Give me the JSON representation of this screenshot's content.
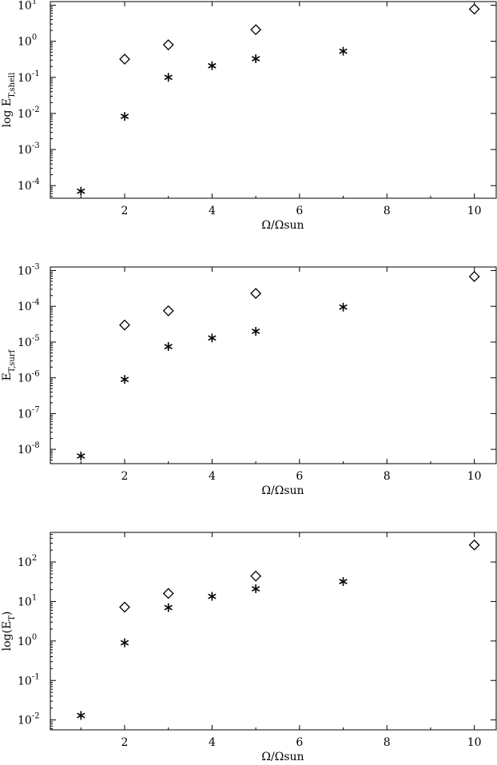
{
  "chart_data": [
    {
      "type": "scatter",
      "xlabel": "Ω/Ωsun",
      "ylabel_main": "log  E",
      "ylabel_sub": "T,shell",
      "xlim": [
        0.3,
        10.5
      ],
      "ylog_range": [
        -4.35,
        1.1
      ],
      "yscale": "log",
      "x_ticks": [
        2,
        4,
        6,
        8,
        10
      ],
      "y_ticks": [
        {
          "mant": "10",
          "exp": "1",
          "log": 1
        },
        {
          "mant": "10",
          "exp": "0",
          "log": 0
        },
        {
          "mant": "10",
          "exp": "-1",
          "log": -1
        },
        {
          "mant": "10",
          "exp": "-2",
          "log": -2
        },
        {
          "mant": "10",
          "exp": "-3",
          "log": -3
        },
        {
          "mant": "10",
          "exp": "-4",
          "log": -4
        }
      ],
      "series": [
        {
          "marker": "diamond",
          "points": [
            {
              "x": 2,
              "y": 0.32
            },
            {
              "x": 3,
              "y": 0.8
            },
            {
              "x": 5,
              "y": 2.1
            },
            {
              "x": 10,
              "y": 7.8
            }
          ]
        },
        {
          "marker": "asterisk",
          "points": [
            {
              "x": 1,
              "y": 7e-05
            },
            {
              "x": 2,
              "y": 0.0083
            },
            {
              "x": 3,
              "y": 0.1
            },
            {
              "x": 4,
              "y": 0.21
            },
            {
              "x": 5,
              "y": 0.33
            },
            {
              "x": 7,
              "y": 0.53
            }
          ]
        }
      ]
    },
    {
      "type": "scatter",
      "xlabel": "Ω/Ωsun",
      "ylabel_main": "E",
      "ylabel_sub": "T,surf",
      "xlim": [
        0.3,
        10.5
      ],
      "ylog_range": [
        -8.4,
        -2.9
      ],
      "yscale": "log",
      "x_ticks": [
        2,
        4,
        6,
        8,
        10
      ],
      "y_ticks": [
        {
          "mant": "10",
          "exp": "-3",
          "log": -3
        },
        {
          "mant": "10",
          "exp": "-4",
          "log": -4
        },
        {
          "mant": "10",
          "exp": "-5",
          "log": -5
        },
        {
          "mant": "10",
          "exp": "-6",
          "log": -6
        },
        {
          "mant": "10",
          "exp": "-7",
          "log": -7
        },
        {
          "mant": "10",
          "exp": "-8",
          "log": -8
        }
      ],
      "series": [
        {
          "marker": "diamond",
          "points": [
            {
              "x": 2,
              "y": 3e-05
            },
            {
              "x": 3,
              "y": 7.5e-05
            },
            {
              "x": 5,
              "y": 0.00023
            },
            {
              "x": 10,
              "y": 0.00068
            }
          ]
        },
        {
          "marker": "asterisk",
          "points": [
            {
              "x": 1,
              "y": 6.5e-09
            },
            {
              "x": 2,
              "y": 9e-07
            },
            {
              "x": 3,
              "y": 7.5e-06
            },
            {
              "x": 4,
              "y": 1.3e-05
            },
            {
              "x": 5,
              "y": 2e-05
            },
            {
              "x": 7,
              "y": 9.5e-05
            }
          ]
        }
      ]
    },
    {
      "type": "scatter",
      "xlabel": "Ω/Ωsun",
      "ylabel_main": "log(E",
      "ylabel_sub": "T",
      "ylabel_tail": ")",
      "xlim": [
        0.3,
        10.5
      ],
      "ylog_range": [
        -2.25,
        2.75
      ],
      "yscale": "log",
      "x_ticks": [
        2,
        4,
        6,
        8,
        10
      ],
      "y_ticks": [
        {
          "mant": "10",
          "exp": "2",
          "log": 2
        },
        {
          "mant": "10",
          "exp": "1",
          "log": 1
        },
        {
          "mant": "10",
          "exp": "0",
          "log": 0
        },
        {
          "mant": "10",
          "exp": "-1",
          "log": -1
        },
        {
          "mant": "10",
          "exp": "-2",
          "log": -2
        }
      ],
      "series": [
        {
          "marker": "diamond",
          "points": [
            {
              "x": 2,
              "y": 7.2
            },
            {
              "x": 3,
              "y": 16
            },
            {
              "x": 5,
              "y": 44
            },
            {
              "x": 10,
              "y": 270
            }
          ]
        },
        {
          "marker": "asterisk",
          "points": [
            {
              "x": 1,
              "y": 0.013
            },
            {
              "x": 2,
              "y": 0.9
            },
            {
              "x": 3,
              "y": 7
            },
            {
              "x": 4,
              "y": 13.5
            },
            {
              "x": 5,
              "y": 21
            },
            {
              "x": 7,
              "y": 32
            }
          ]
        }
      ]
    }
  ]
}
